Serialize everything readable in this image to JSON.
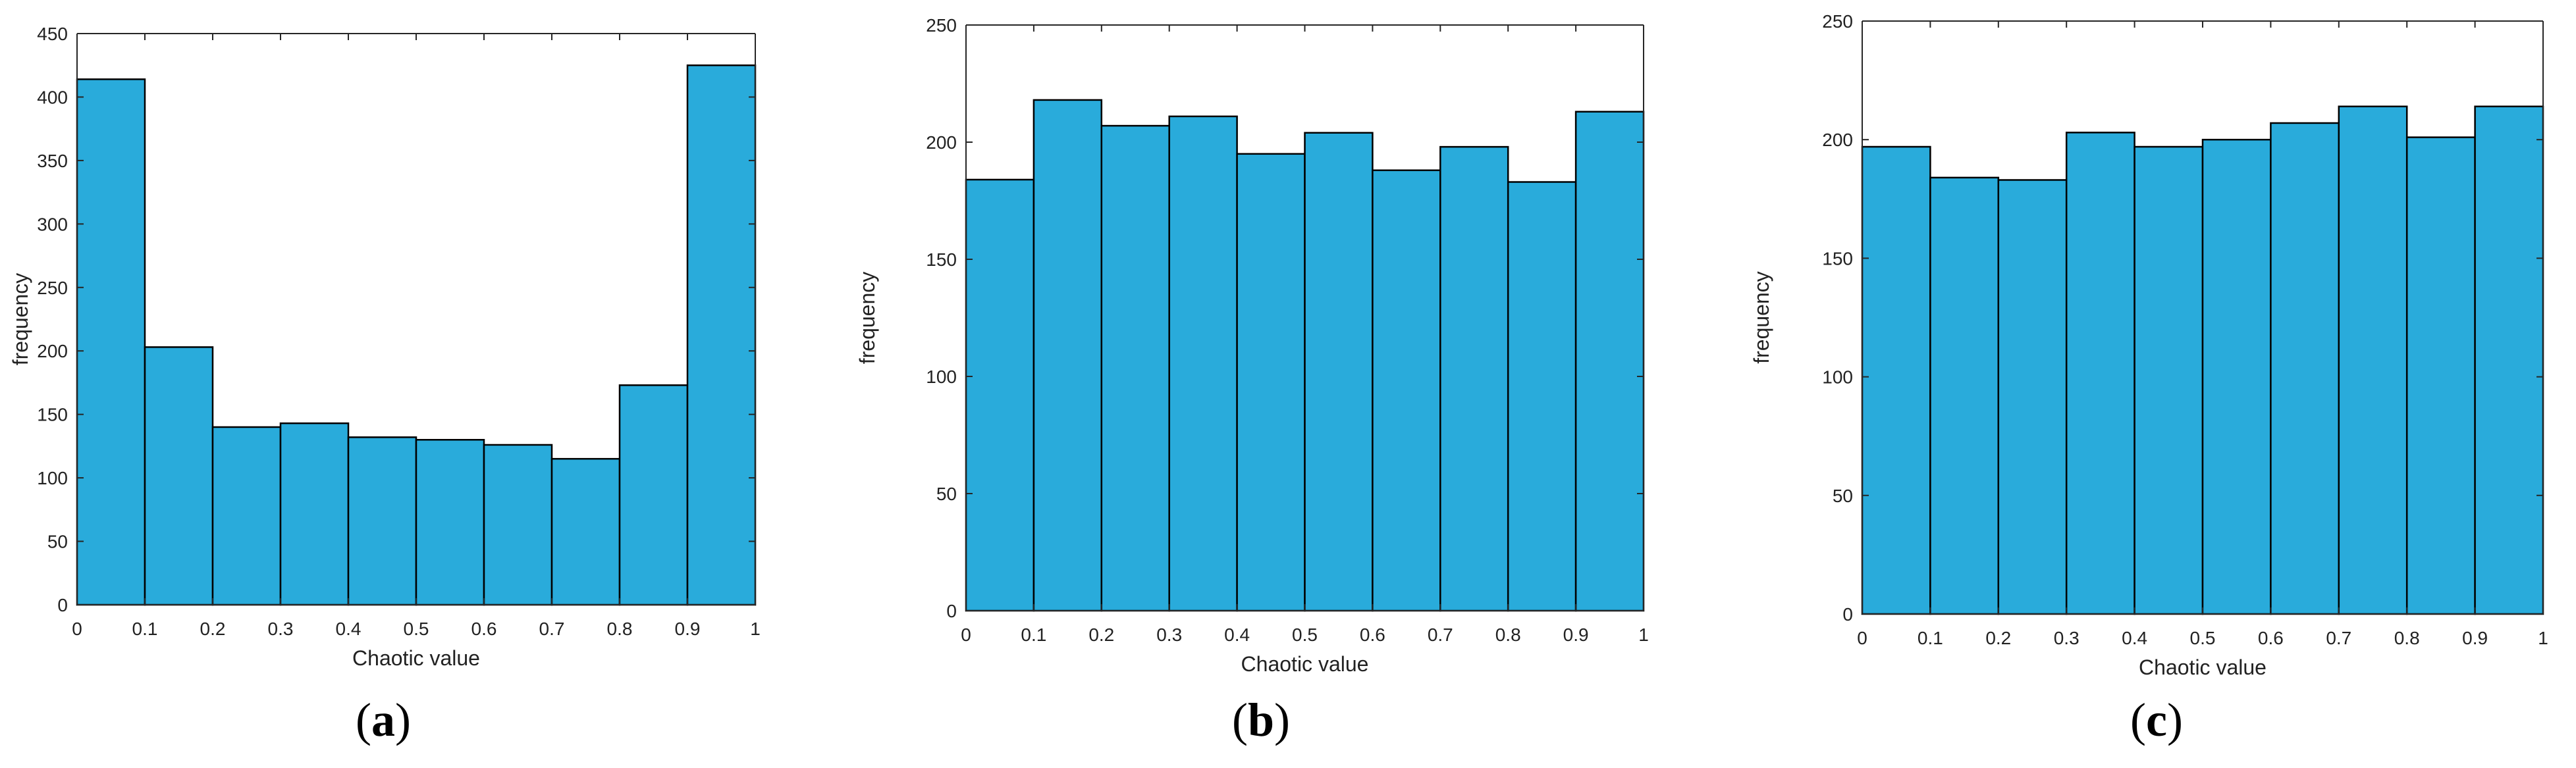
{
  "bar_color": "#29abdb",
  "edge_color": "#000000",
  "axis_color": "#262626",
  "panel_labels": [
    "(a)",
    "(b)",
    "(c)"
  ],
  "chart_data": [
    {
      "type": "bar",
      "panel": "(a)",
      "xlabel": "Chaotic value",
      "ylabel": "frequency",
      "xlim": [
        0,
        1
      ],
      "ylim": [
        0,
        450
      ],
      "xticks": [
        "0",
        "0.1",
        "0.2",
        "0.3",
        "0.4",
        "0.5",
        "0.6",
        "0.7",
        "0.8",
        "0.9",
        "1"
      ],
      "yticks": [
        "0",
        "50",
        "100",
        "150",
        "200",
        "250",
        "300",
        "350",
        "400",
        "450"
      ],
      "bin_edges": [
        0,
        0.1,
        0.2,
        0.3,
        0.4,
        0.5,
        0.6,
        0.7,
        0.8,
        0.9,
        1.0
      ],
      "values": [
        414,
        203,
        140,
        143,
        132,
        130,
        126,
        115,
        173,
        425
      ]
    },
    {
      "type": "bar",
      "panel": "(b)",
      "xlabel": "Chaotic value",
      "ylabel": "frequency",
      "xlim": [
        0,
        1
      ],
      "ylim": [
        0,
        250
      ],
      "xticks": [
        "0",
        "0.1",
        "0.2",
        "0.3",
        "0.4",
        "0.5",
        "0.6",
        "0.7",
        "0.8",
        "0.9",
        "1"
      ],
      "yticks": [
        "0",
        "50",
        "100",
        "150",
        "200",
        "250"
      ],
      "bin_edges": [
        0,
        0.1,
        0.2,
        0.3,
        0.4,
        0.5,
        0.6,
        0.7,
        0.8,
        0.9,
        1.0
      ],
      "values": [
        184,
        218,
        207,
        211,
        195,
        204,
        188,
        198,
        183,
        213
      ]
    },
    {
      "type": "bar",
      "panel": "(c)",
      "xlabel": "Chaotic value",
      "ylabel": "frequency",
      "xlim": [
        0,
        1
      ],
      "ylim": [
        0,
        250
      ],
      "xticks": [
        "0",
        "0.1",
        "0.2",
        "0.3",
        "0.4",
        "0.5",
        "0.6",
        "0.7",
        "0.8",
        "0.9",
        "1"
      ],
      "yticks": [
        "0",
        "50",
        "100",
        "150",
        "200",
        "250"
      ],
      "bin_edges": [
        0,
        0.1,
        0.2,
        0.3,
        0.4,
        0.5,
        0.6,
        0.7,
        0.8,
        0.9,
        1.0
      ],
      "values": [
        197,
        184,
        183,
        203,
        197,
        200,
        207,
        214,
        201,
        214
      ]
    }
  ]
}
